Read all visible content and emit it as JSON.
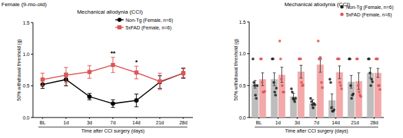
{
  "panel_label": "Female (9-mo-old)",
  "chart_data": [
    {
      "type": "line",
      "title": "Mechanical allodynia (CCI)",
      "x_label": "Time after CCI surgery (days)",
      "y_label": "50% withdrawal threshold (g)",
      "categories": [
        "BL",
        "1d",
        "3d",
        "7d",
        "14d",
        "21d",
        "28d"
      ],
      "ylim": [
        0,
        1.5
      ],
      "yticks": [
        {
          "value": 0,
          "label": "0.0"
        },
        0.5,
        {
          "value": 1,
          "label": "1.0"
        },
        1.5
      ],
      "legend": "top-right",
      "series": [
        {
          "name": "Non-Tg (Female, n=6)",
          "color": "#000000",
          "marker": "circle",
          "values": [
            0.52,
            0.6,
            0.33,
            0.22,
            0.27,
            0.56,
            0.7
          ],
          "errors": [
            0.06,
            0.1,
            0.05,
            0.06,
            0.1,
            0.1,
            0.08
          ]
        },
        {
          "name": "5xFAD (Female, n=6)",
          "color": "#e05555",
          "marker": "square",
          "values": [
            0.6,
            0.67,
            0.72,
            0.83,
            0.71,
            0.57,
            0.7
          ],
          "errors": [
            0.1,
            0.12,
            0.1,
            0.12,
            0.1,
            0.13,
            0.07
          ]
        }
      ],
      "annotations": [
        {
          "category": "7d",
          "text": "**"
        },
        {
          "category": "14d",
          "text": "*"
        }
      ]
    },
    {
      "type": "bar",
      "title": "Mechanical allodynia (CCI)",
      "x_label": "Time after CCI surgery (days)",
      "y_label": "50% withdrawal threshold (g)",
      "categories": [
        "BL",
        "1d",
        "3d",
        "7d",
        "14d",
        "21d",
        "28d"
      ],
      "ylim": [
        0,
        1.5
      ],
      "yticks": [
        {
          "value": 0,
          "label": "0.0"
        },
        0.5,
        {
          "value": 1,
          "label": "1.0"
        },
        1.5
      ],
      "legend": "right",
      "series": [
        {
          "name": "Non-Tg (Female, n=6)",
          "color": "#bdbdbd",
          "marker": "circle",
          "values": [
            0.52,
            0.6,
            0.33,
            0.22,
            0.27,
            0.56,
            0.7
          ],
          "errors": [
            0.06,
            0.1,
            0.05,
            0.06,
            0.1,
            0.1,
            0.08
          ],
          "points": [
            [
              0.92,
              0.55,
              0.5,
              0.35,
              0.3,
              0.5
            ],
            [
              0.92,
              0.92,
              0.55,
              0.4,
              0.35,
              0.46
            ],
            [
              0.45,
              0.4,
              0.3,
              0.28,
              0.25,
              0.3
            ],
            [
              0.3,
              0.25,
              0.2,
              0.15,
              0.22,
              0.2
            ],
            [
              0.6,
              0.55,
              0.15,
              0.1,
              0.1,
              0.12
            ],
            [
              0.92,
              0.92,
              0.5,
              0.3,
              0.35,
              0.37
            ],
            [
              0.92,
              0.92,
              0.7,
              0.5,
              0.6,
              0.56
            ]
          ]
        },
        {
          "name": "5xFAD (Female, n=6)",
          "color": "#f2a9a9",
          "marker": "circle",
          "values": [
            0.6,
            0.67,
            0.72,
            0.83,
            0.71,
            0.57,
            0.7
          ],
          "errors": [
            0.1,
            0.12,
            0.1,
            0.12,
            0.1,
            0.13,
            0.07
          ],
          "points": [
            [
              0.92,
              0.92,
              0.55,
              0.4,
              0.4,
              0.41
            ],
            [
              1.2,
              0.92,
              0.6,
              0.5,
              0.4,
              0.4
            ],
            [
              0.92,
              0.92,
              0.92,
              0.55,
              0.5,
              0.51
            ],
            [
              1.2,
              0.92,
              0.92,
              0.92,
              0.55,
              0.47
            ],
            [
              0.92,
              0.92,
              0.92,
              0.55,
              0.5,
              0.45
            ],
            [
              0.92,
              0.92,
              0.5,
              0.4,
              0.35,
              0.33
            ],
            [
              0.92,
              0.92,
              0.92,
              0.5,
              0.5,
              0.44
            ]
          ]
        }
      ]
    }
  ]
}
